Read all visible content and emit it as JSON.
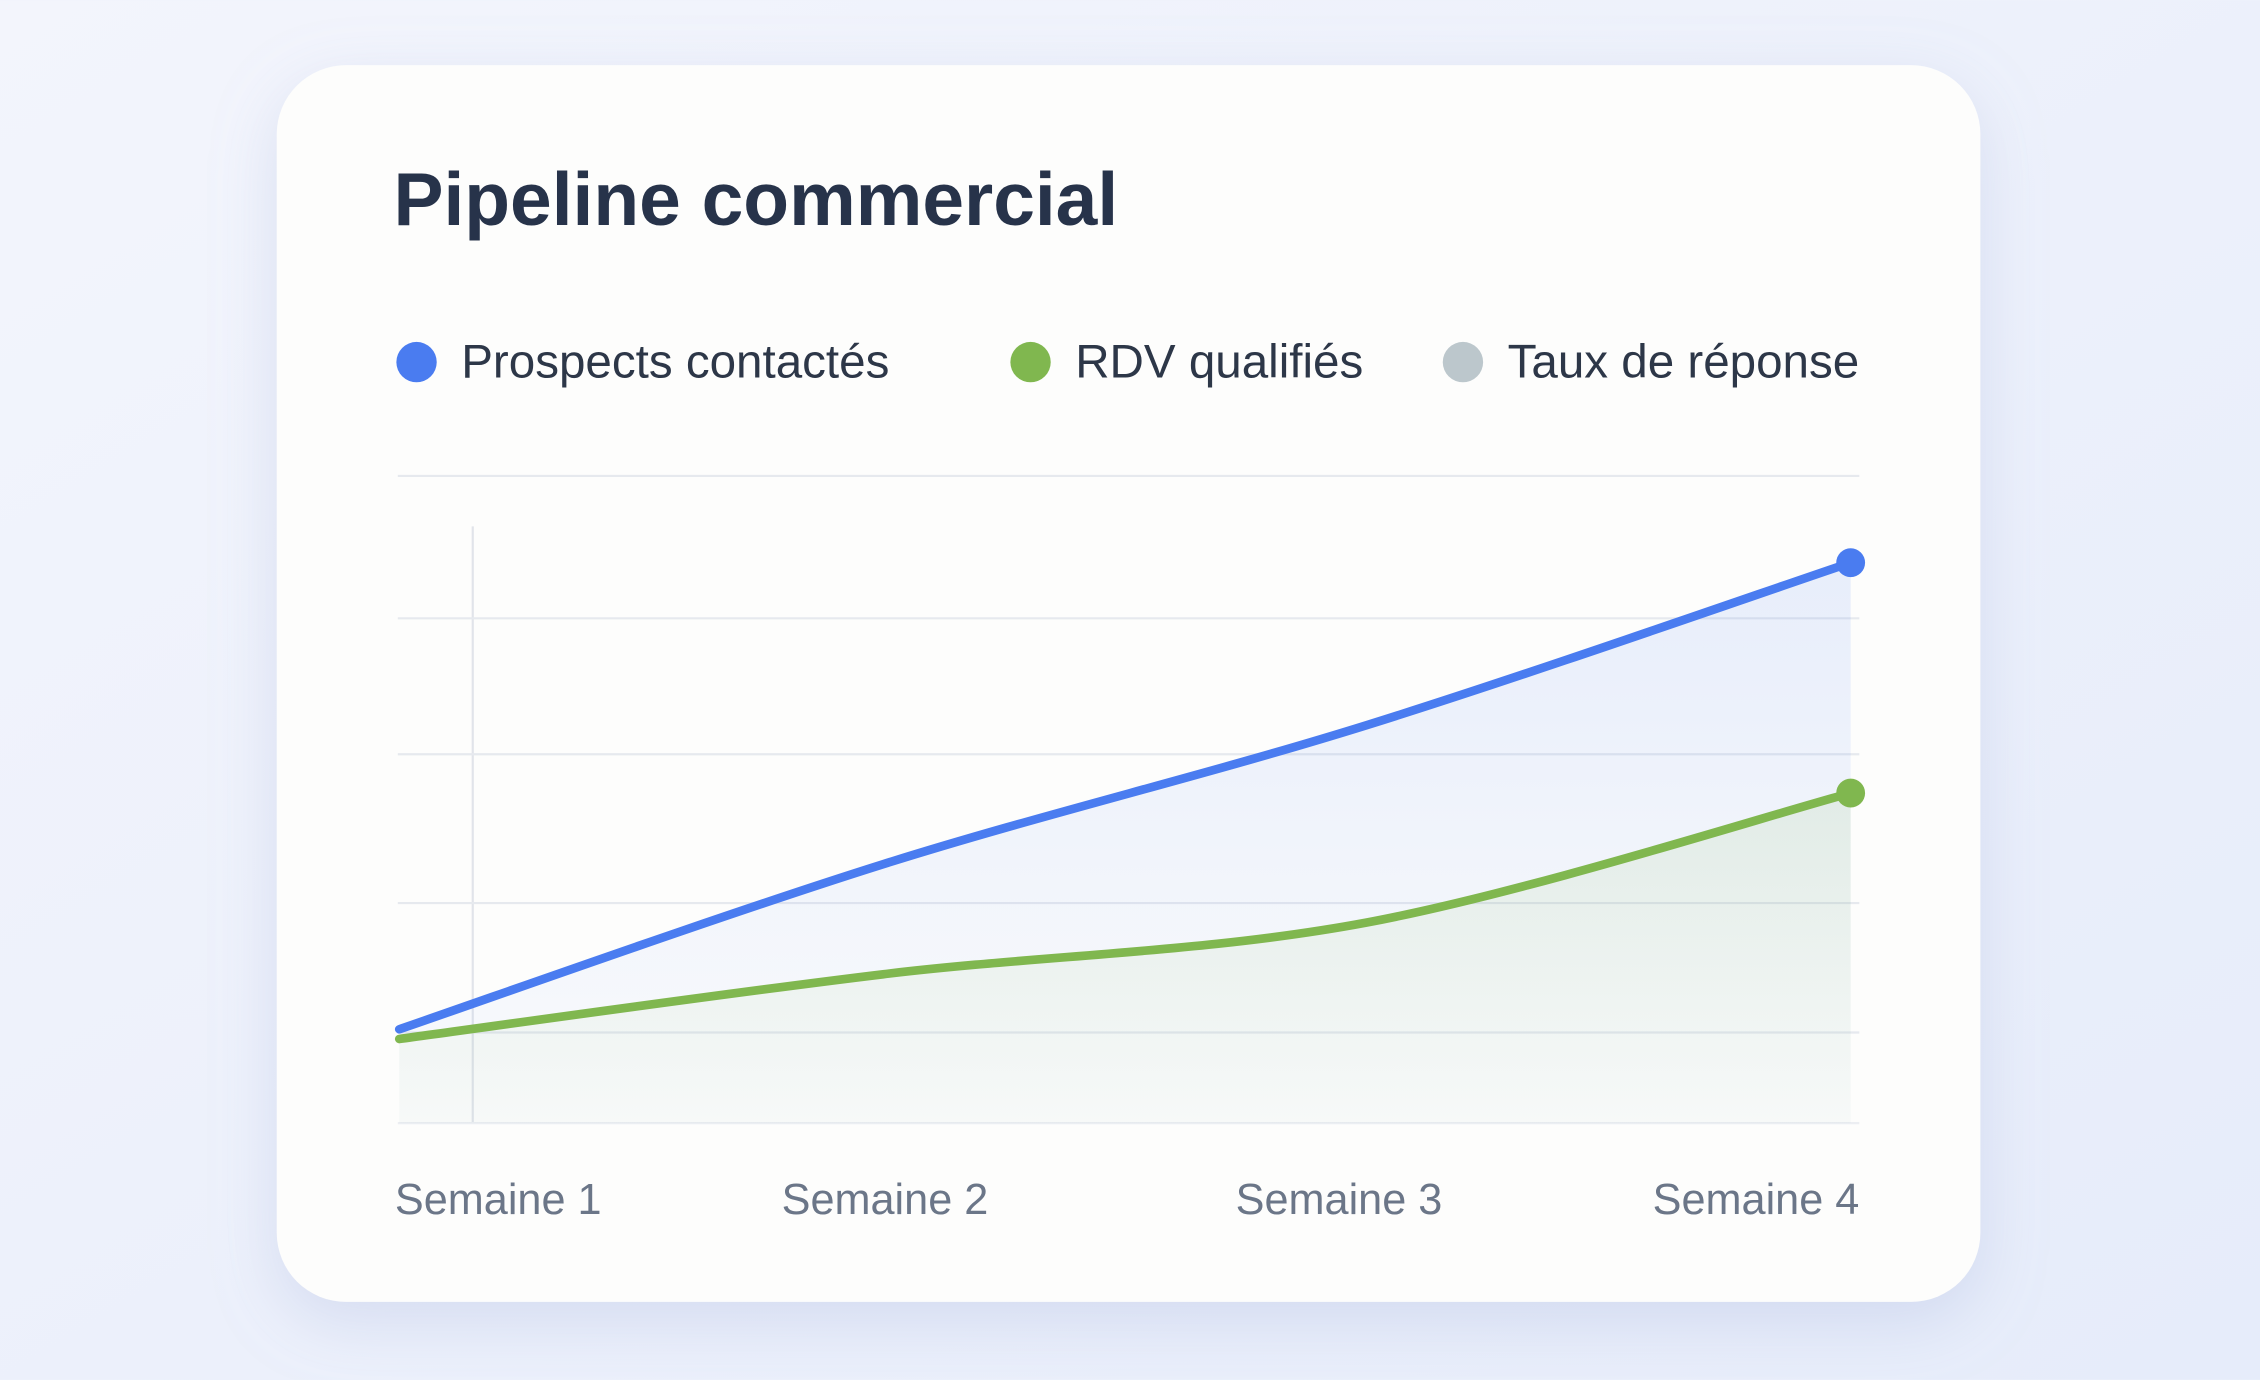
{
  "chart_data": {
    "type": "line",
    "title": "Pipeline commercial",
    "categories": [
      "Semaine 1",
      "Semaine 2",
      "Semaine 3",
      "Semaine 4"
    ],
    "series": [
      {
        "name": "Prospects contactés",
        "color": "#4a7cf0",
        "values": [
          14.5,
          40,
          61.5,
          86.6
        ]
      },
      {
        "name": "RDV qualifiés",
        "color": "#80b74f",
        "values": [
          13,
          23,
          31,
          51
        ]
      },
      {
        "name": "Taux de réponse",
        "color": "#bcc7cc",
        "values": [
          null,
          null,
          null,
          null
        ]
      }
    ],
    "ylim": [
      0,
      100
    ],
    "yticks": [
      14,
      34,
      57,
      78,
      100
    ],
    "grid": true
  }
}
